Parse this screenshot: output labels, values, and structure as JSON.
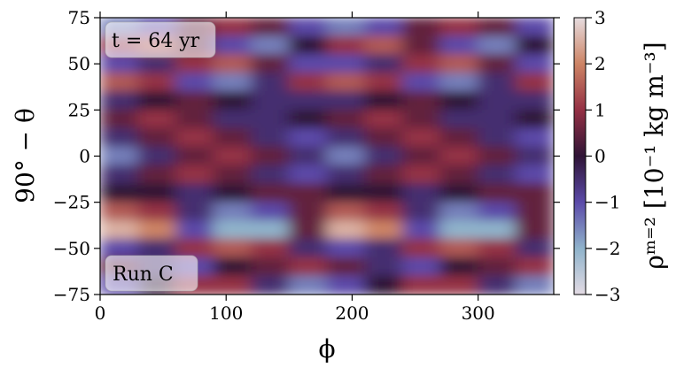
{
  "chart_data": {
    "type": "heatmap",
    "xlabel": "ϕ",
    "ylabel": "90° − θ",
    "colorbar_label": "ρᵐ⁼² [10⁻¹ kg m⁻³]",
    "annotations": [
      "t = 64 yr",
      "Run C"
    ],
    "xlim": [
      0,
      360
    ],
    "xticks": [
      0,
      100,
      200,
      300
    ],
    "ylim": [
      -75,
      75
    ],
    "yticks": [
      {
        "value": -75,
        "label": "−75"
      },
      {
        "value": -50,
        "label": "−50"
      },
      {
        "value": -25,
        "label": "−25"
      },
      0,
      25,
      50,
      75
    ],
    "clim": [
      -3,
      3
    ],
    "cticks": [
      {
        "value": -3,
        "label": "−3"
      },
      {
        "value": -2,
        "label": "−2"
      },
      {
        "value": -1,
        "label": "−1"
      },
      0,
      1,
      2,
      3
    ],
    "colors": [
      "#e3dbe4",
      "#8fb3cb",
      "#5b4aa9",
      "#2f1436",
      "#943044",
      "#cd8465",
      "#e6dcdf"
    ],
    "x": [
      15,
      45,
      75,
      105,
      135,
      165,
      195,
      225,
      255,
      285,
      315,
      345
    ],
    "y": [
      70,
      60,
      50,
      40,
      30,
      20,
      10,
      0,
      -10,
      -20,
      -30,
      -40,
      -50,
      -60,
      -70
    ],
    "z": [
      [
        -1.5,
        -1,
        0.5,
        1,
        0.5,
        -1,
        -1.5,
        -1,
        0.5,
        1,
        0.5,
        -1
      ],
      [
        1,
        1.5,
        0.5,
        -1,
        -1.5,
        0,
        1,
        1.5,
        0.5,
        -1,
        -1.5,
        0
      ],
      [
        -1,
        -0.5,
        1,
        1.5,
        0.5,
        -1,
        -1,
        -0.5,
        1,
        1.5,
        0.5,
        -1
      ],
      [
        1.5,
        1,
        -1,
        -1.5,
        -0.5,
        1,
        1.5,
        1,
        -1,
        -1.5,
        -0.5,
        1
      ],
      [
        -0.5,
        0,
        0.5,
        0,
        -0.5,
        -0.5,
        -0.5,
        0,
        0.5,
        0,
        -0.5,
        -0.5
      ],
      [
        0.5,
        1,
        0.5,
        -0.5,
        -0.5,
        0,
        0.5,
        1,
        0.5,
        -0.5,
        -0.5,
        0
      ],
      [
        -0.5,
        0.5,
        1,
        0.5,
        -0.5,
        -1,
        -0.5,
        0.5,
        1,
        0.5,
        -0.5,
        -1
      ],
      [
        -1.5,
        -0.5,
        0.5,
        1,
        0.5,
        -0.5,
        -1.5,
        -0.5,
        0.5,
        1,
        0.5,
        -0.5
      ],
      [
        -0.5,
        0.5,
        1,
        0.5,
        -0.5,
        -1,
        -0.5,
        0.5,
        1,
        0.5,
        -0.5,
        -1
      ],
      [
        0,
        0,
        -0.5,
        0,
        0.5,
        0.5,
        0,
        0,
        -0.5,
        0,
        0.5,
        0.5
      ],
      [
        1.5,
        1,
        -0.5,
        -1.5,
        -1,
        0.5,
        1.5,
        1,
        -0.5,
        -1.5,
        -1,
        0.5
      ],
      [
        2.5,
        2,
        -1,
        -2,
        -2,
        0.5,
        2.5,
        2,
        -1,
        -2,
        -2,
        0.5
      ],
      [
        -1,
        -0.5,
        1,
        1.5,
        1,
        -0.5,
        -1,
        -0.5,
        1,
        1.5,
        1,
        -0.5
      ],
      [
        0.5,
        -0.5,
        -1,
        0,
        0.5,
        1,
        0.5,
        -0.5,
        -1,
        0,
        0.5,
        1
      ],
      [
        -1,
        0,
        1,
        1,
        -0.5,
        -1.5,
        -1,
        0,
        1,
        1,
        -0.5,
        -1.5
      ]
    ]
  }
}
